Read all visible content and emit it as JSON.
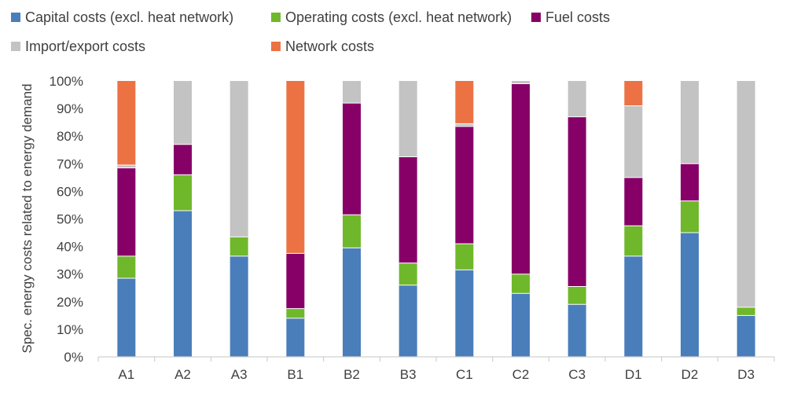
{
  "chart_data": {
    "type": "bar",
    "stacked": true,
    "title": "",
    "xlabel": "",
    "ylabel": "Spec. energy costs related to energy demand",
    "ylim": [
      0,
      100
    ],
    "yticks": [
      0,
      10,
      20,
      30,
      40,
      50,
      60,
      70,
      80,
      90,
      100
    ],
    "ytick_labels": [
      "0%",
      "10%",
      "20%",
      "30%",
      "40%",
      "50%",
      "60%",
      "70%",
      "80%",
      "90%",
      "100%"
    ],
    "grid": false,
    "legend_position": "top",
    "categories": [
      "A1",
      "A2",
      "A3",
      "B1",
      "B2",
      "B3",
      "C1",
      "C2",
      "C3",
      "D1",
      "D2",
      "D3"
    ],
    "series": [
      {
        "name": "Capital costs (excl. heat network)",
        "color": "#4a7ebb",
        "values": [
          28.5,
          53,
          36.5,
          14,
          39.5,
          26,
          31.5,
          23,
          19,
          36.5,
          45,
          15
        ]
      },
      {
        "name": "Operating costs (excl. heat network)",
        "color": "#70b82b",
        "values": [
          8,
          13,
          7,
          3.5,
          12,
          8,
          9.5,
          7,
          6.5,
          11,
          11.5,
          3
        ]
      },
      {
        "name": "Fuel costs",
        "color": "#870067",
        "values": [
          32,
          11,
          0,
          20,
          40.5,
          38.5,
          42.5,
          69,
          61.5,
          17.5,
          13.5,
          0
        ]
      },
      {
        "name": "Import/export costs",
        "color": "#c3c3c3",
        "values": [
          1,
          23,
          56.5,
          0,
          8,
          27.5,
          1,
          1,
          13,
          26,
          30,
          82
        ]
      },
      {
        "name": "Network costs",
        "color": "#ec7243",
        "values": [
          30.5,
          0,
          0,
          62.5,
          0,
          0,
          15.5,
          0,
          0,
          9,
          0,
          0
        ]
      }
    ]
  }
}
